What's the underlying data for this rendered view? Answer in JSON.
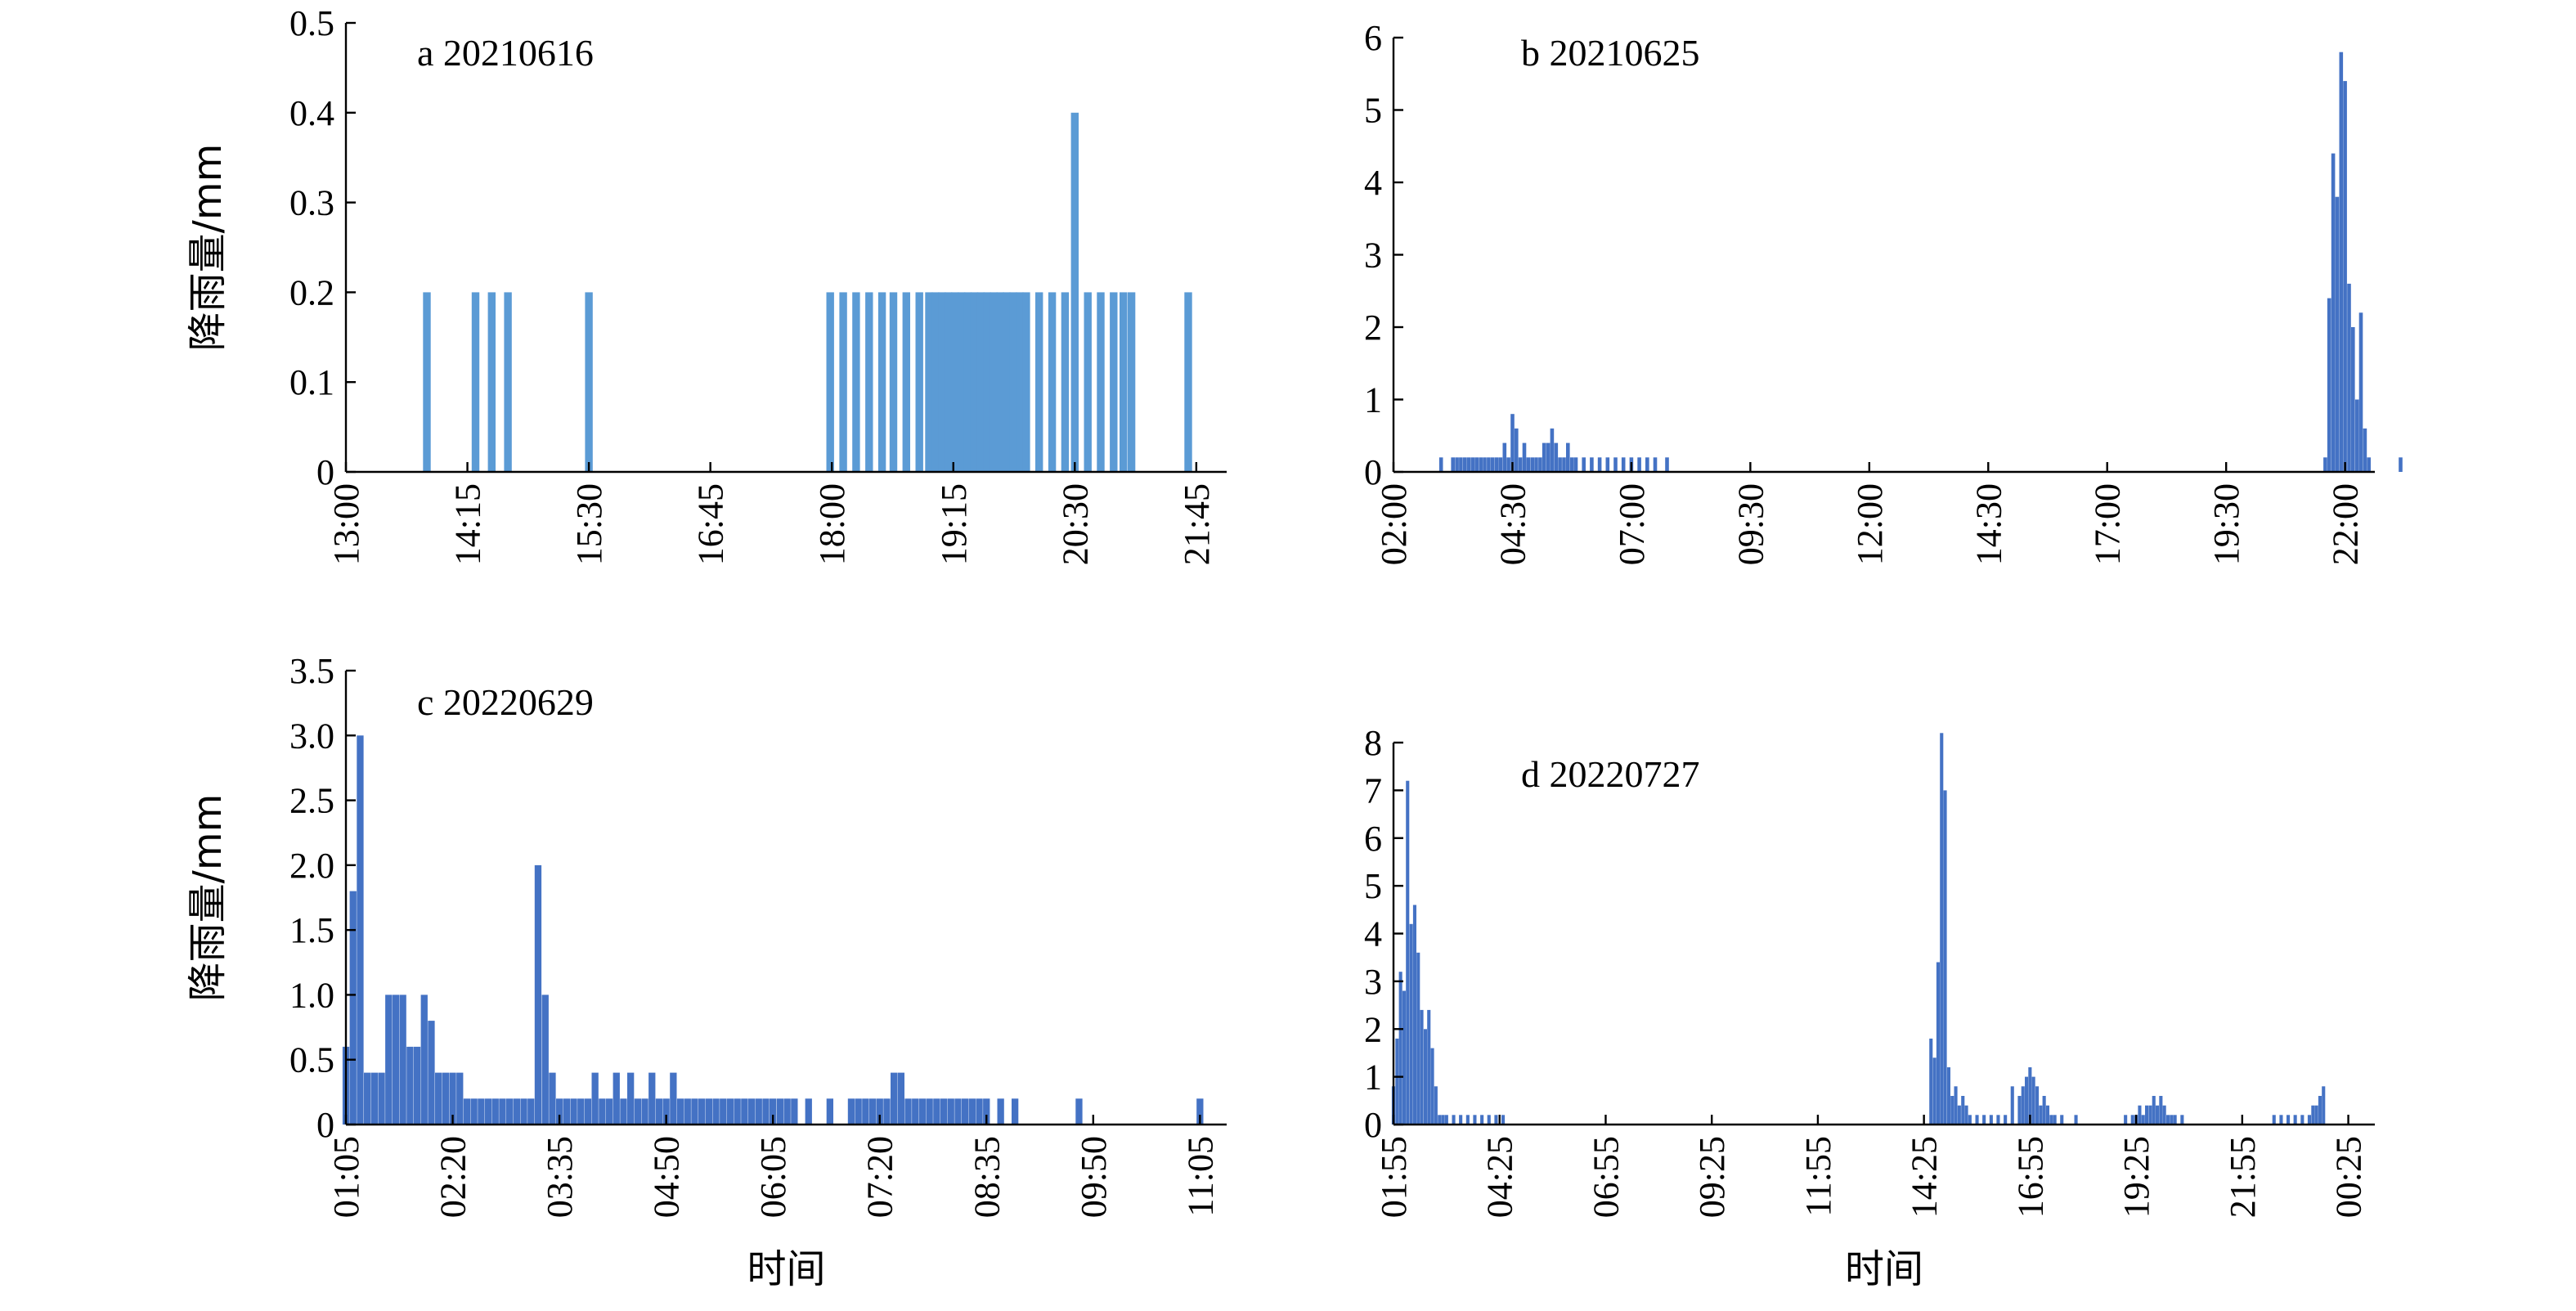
{
  "chart_data": [
    {
      "type": "bar",
      "panel": "a",
      "title": "a  20210616",
      "ylabel": "降雨量/mm",
      "xlabel": "",
      "ylim": [
        0,
        0.5
      ],
      "yticks": [
        "0",
        "0.1",
        "0.2",
        "0.3",
        "0.4",
        "0.5"
      ],
      "xticks": [
        "13:00",
        "14:15",
        "15:30",
        "16:45",
        "18:00",
        "19:15",
        "20:30",
        "21:45"
      ],
      "color": "#5b9bd5",
      "x": [
        "13:50",
        "14:20",
        "14:30",
        "14:40",
        "15:30",
        "17:59",
        "18:07",
        "18:15",
        "18:23",
        "18:31",
        "18:38",
        "18:46",
        "18:54",
        "19:00",
        "19:04",
        "19:08",
        "19:12",
        "19:16",
        "19:20",
        "19:24",
        "19:28",
        "19:32",
        "19:36",
        "19:40",
        "19:44",
        "19:48",
        "19:52",
        "19:56",
        "20:00",
        "20:08",
        "20:16",
        "20:24",
        "20:30",
        "20:38",
        "20:46",
        "20:54",
        "21:00",
        "21:05",
        "21:40"
      ],
      "values": [
        0.2,
        0.2,
        0.2,
        0.2,
        0.2,
        0.2,
        0.2,
        0.2,
        0.2,
        0.2,
        0.2,
        0.2,
        0.2,
        0.2,
        0.2,
        0.2,
        0.2,
        0.2,
        0.2,
        0.2,
        0.2,
        0.2,
        0.2,
        0.2,
        0.2,
        0.2,
        0.2,
        0.2,
        0.2,
        0.2,
        0.2,
        0.2,
        0.4,
        0.2,
        0.2,
        0.2,
        0.2,
        0.2,
        0.2
      ]
    },
    {
      "type": "bar",
      "panel": "b",
      "title": "b  20210625",
      "ylabel": "",
      "xlabel": "",
      "ylim": [
        0,
        6
      ],
      "yticks": [
        "0",
        "1",
        "2",
        "3",
        "4",
        "5",
        "6"
      ],
      "xticks": [
        "02:00",
        "04:30",
        "07:00",
        "09:30",
        "12:00",
        "14:30",
        "17:00",
        "19:30",
        "22:00"
      ],
      "color": "#4472c4",
      "x": [
        "03:00",
        "03:15",
        "03:20",
        "03:25",
        "03:30",
        "03:35",
        "03:40",
        "03:45",
        "03:50",
        "03:55",
        "04:00",
        "04:05",
        "04:10",
        "04:15",
        "04:20",
        "04:25",
        "04:30",
        "04:35",
        "04:40",
        "04:45",
        "04:50",
        "04:55",
        "05:00",
        "05:05",
        "05:10",
        "05:15",
        "05:20",
        "05:25",
        "05:30",
        "05:35",
        "05:40",
        "05:45",
        "05:50",
        "06:00",
        "06:10",
        "06:20",
        "06:30",
        "06:40",
        "06:50",
        "07:00",
        "07:10",
        "07:20",
        "07:30",
        "07:45",
        "21:35",
        "21:40",
        "21:45",
        "21:50",
        "21:55",
        "22:00",
        "22:05",
        "22:10",
        "22:15",
        "22:20",
        "22:25",
        "22:30",
        "23:10"
      ],
      "values": [
        0.2,
        0.2,
        0.2,
        0.2,
        0.2,
        0.2,
        0.2,
        0.2,
        0.2,
        0.2,
        0.2,
        0.2,
        0.2,
        0.2,
        0.4,
        0.2,
        0.8,
        0.6,
        0.2,
        0.4,
        0.2,
        0.2,
        0.2,
        0.2,
        0.4,
        0.4,
        0.6,
        0.4,
        0.2,
        0.2,
        0.4,
        0.2,
        0.2,
        0.2,
        0.2,
        0.2,
        0.2,
        0.2,
        0.2,
        0.2,
        0.2,
        0.2,
        0.2,
        0.2,
        0.2,
        2.4,
        4.4,
        3.8,
        5.8,
        5.4,
        2.6,
        2.0,
        1.0,
        2.2,
        0.6,
        0.2,
        0.2
      ]
    },
    {
      "type": "bar",
      "panel": "c",
      "title": "c  20220629",
      "ylabel": "降雨量/mm",
      "xlabel": "时间",
      "ylim": [
        0,
        3.5
      ],
      "yticks": [
        "0",
        "0.5",
        "1.0",
        "1.5",
        "2.0",
        "2.5",
        "3.0",
        "3.5"
      ],
      "xticks": [
        "01:05",
        "02:20",
        "03:35",
        "04:50",
        "06:05",
        "07:20",
        "08:35",
        "09:50",
        "11:05"
      ],
      "color": "#4472c4",
      "x": [
        "01:05",
        "01:10",
        "01:15",
        "01:20",
        "01:25",
        "01:30",
        "01:35",
        "01:40",
        "01:45",
        "01:50",
        "01:55",
        "02:00",
        "02:05",
        "02:10",
        "02:15",
        "02:20",
        "02:25",
        "02:30",
        "02:35",
        "02:40",
        "02:45",
        "02:50",
        "02:55",
        "03:00",
        "03:05",
        "03:10",
        "03:15",
        "03:20",
        "03:25",
        "03:30",
        "03:35",
        "03:40",
        "03:45",
        "03:50",
        "03:55",
        "04:00",
        "04:05",
        "04:10",
        "04:15",
        "04:20",
        "04:25",
        "04:30",
        "04:35",
        "04:40",
        "04:45",
        "04:50",
        "04:55",
        "05:00",
        "05:05",
        "05:10",
        "05:15",
        "05:20",
        "05:25",
        "05:30",
        "05:35",
        "05:40",
        "05:45",
        "05:50",
        "05:55",
        "06:00",
        "06:05",
        "06:10",
        "06:15",
        "06:20",
        "06:30",
        "06:45",
        "07:00",
        "07:05",
        "07:10",
        "07:15",
        "07:20",
        "07:25",
        "07:30",
        "07:35",
        "07:40",
        "07:45",
        "07:50",
        "07:55",
        "08:00",
        "08:05",
        "08:10",
        "08:15",
        "08:20",
        "08:25",
        "08:30",
        "08:35",
        "08:45",
        "08:55",
        "09:40",
        "11:05"
      ],
      "values": [
        0.6,
        1.8,
        3.0,
        0.4,
        0.4,
        0.4,
        1.0,
        1.0,
        1.0,
        0.6,
        0.6,
        1.0,
        0.8,
        0.4,
        0.4,
        0.4,
        0.4,
        0.2,
        0.2,
        0.2,
        0.2,
        0.2,
        0.2,
        0.2,
        0.2,
        0.2,
        0.2,
        2.0,
        1.0,
        0.4,
        0.2,
        0.2,
        0.2,
        0.2,
        0.2,
        0.4,
        0.2,
        0.2,
        0.4,
        0.2,
        0.4,
        0.2,
        0.2,
        0.4,
        0.2,
        0.2,
        0.4,
        0.2,
        0.2,
        0.2,
        0.2,
        0.2,
        0.2,
        0.2,
        0.2,
        0.2,
        0.2,
        0.2,
        0.2,
        0.2,
        0.2,
        0.2,
        0.2,
        0.2,
        0.2,
        0.2,
        0.2,
        0.2,
        0.2,
        0.2,
        0.2,
        0.2,
        0.4,
        0.4,
        0.2,
        0.2,
        0.2,
        0.2,
        0.2,
        0.2,
        0.2,
        0.2,
        0.2,
        0.2,
        0.2,
        0.2,
        0.2,
        0.2,
        0.2,
        0.2
      ]
    },
    {
      "type": "bar",
      "panel": "d",
      "title": "d  20220727",
      "ylabel": "",
      "xlabel": "时间",
      "ylim": [
        0,
        8
      ],
      "yticks": [
        "0",
        "1",
        "2",
        "3",
        "4",
        "5",
        "6",
        "7",
        "8"
      ],
      "xticks": [
        "01:55",
        "04:25",
        "06:55",
        "09:25",
        "11:55",
        "14:25",
        "16:55",
        "19:25",
        "21:55",
        "00:25"
      ],
      "color": "#4472c4",
      "x": [
        "01:55",
        "02:00",
        "02:05",
        "02:10",
        "02:15",
        "02:20",
        "02:25",
        "02:30",
        "02:35",
        "02:40",
        "02:45",
        "02:50",
        "02:55",
        "03:00",
        "03:05",
        "03:10",
        "03:20",
        "03:30",
        "03:40",
        "03:50",
        "04:00",
        "04:10",
        "04:20",
        "04:30",
        "14:35",
        "14:40",
        "14:45",
        "14:50",
        "14:55",
        "15:00",
        "15:05",
        "15:10",
        "15:15",
        "15:20",
        "15:25",
        "15:30",
        "15:40",
        "15:50",
        "16:00",
        "16:10",
        "16:20",
        "16:30",
        "16:40",
        "16:45",
        "16:50",
        "16:55",
        "17:00",
        "17:05",
        "17:10",
        "17:15",
        "17:20",
        "17:25",
        "17:30",
        "17:40",
        "18:00",
        "19:10",
        "19:20",
        "19:25",
        "19:30",
        "19:35",
        "19:40",
        "19:45",
        "19:50",
        "19:55",
        "20:00",
        "20:05",
        "20:10",
        "20:15",
        "20:20",
        "20:30",
        "22:40",
        "22:50",
        "23:00",
        "23:10",
        "23:20",
        "23:30",
        "23:35",
        "23:40",
        "23:45",
        "23:50"
      ],
      "values": [
        0.8,
        1.8,
        3.2,
        2.8,
        7.2,
        4.2,
        4.6,
        3.6,
        2.4,
        2.0,
        2.4,
        1.6,
        0.8,
        0.2,
        0.2,
        0.2,
        0.2,
        0.2,
        0.2,
        0.2,
        0.2,
        0.2,
        0.2,
        0.2,
        1.8,
        1.4,
        3.4,
        8.2,
        7.0,
        1.2,
        0.6,
        0.8,
        0.4,
        0.6,
        0.4,
        0.2,
        0.2,
        0.2,
        0.2,
        0.2,
        0.2,
        0.8,
        0.6,
        0.8,
        1.0,
        1.2,
        1.0,
        0.8,
        0.4,
        0.6,
        0.4,
        0.2,
        0.2,
        0.2,
        0.2,
        0.2,
        0.2,
        0.2,
        0.4,
        0.2,
        0.4,
        0.4,
        0.6,
        0.4,
        0.6,
        0.4,
        0.2,
        0.2,
        0.2,
        0.2,
        0.2,
        0.2,
        0.2,
        0.2,
        0.2,
        0.2,
        0.4,
        0.4,
        0.6,
        0.8
      ]
    }
  ]
}
